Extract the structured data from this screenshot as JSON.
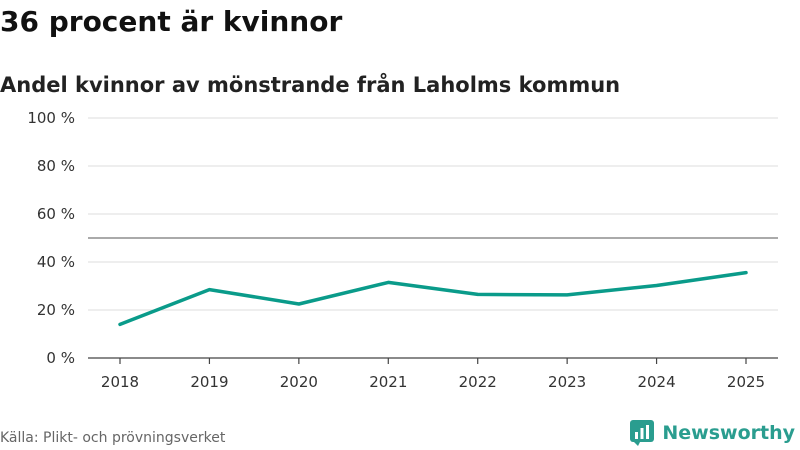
{
  "title": "36 procent är kvinnor",
  "subtitle": "Andel kvinnor av mönstrande från Laholms kommun",
  "source": "Källa: Plikt- och prövningsverket",
  "brand": {
    "name": "Newsworthy",
    "icon": "bar-chart-logo-icon"
  },
  "colors": {
    "line": "#0a9b8a",
    "grid": "#dddddd",
    "reference": "#777777",
    "axis": "#444444",
    "brand": "#2a9d8f"
  },
  "chart_data": {
    "type": "line",
    "title": "36 procent är kvinnor",
    "subtitle": "Andel kvinnor av mönstrande från Laholms kommun",
    "xlabel": "",
    "ylabel": "",
    "x": [
      "2018",
      "2019",
      "2020",
      "2021",
      "2022",
      "2023",
      "2024",
      "2025"
    ],
    "series": [
      {
        "name": "Andel kvinnor",
        "values": [
          14,
          28.5,
          22.5,
          31.5,
          26.5,
          26.3,
          30.2,
          35.6
        ]
      }
    ],
    "ylim": [
      0,
      100
    ],
    "yticks": [
      0,
      20,
      40,
      60,
      80,
      100
    ],
    "ytick_labels": [
      "0 %",
      "20 %",
      "40 %",
      "60 %",
      "80 %",
      "100 %"
    ],
    "reference_line": 50,
    "grid": true
  }
}
